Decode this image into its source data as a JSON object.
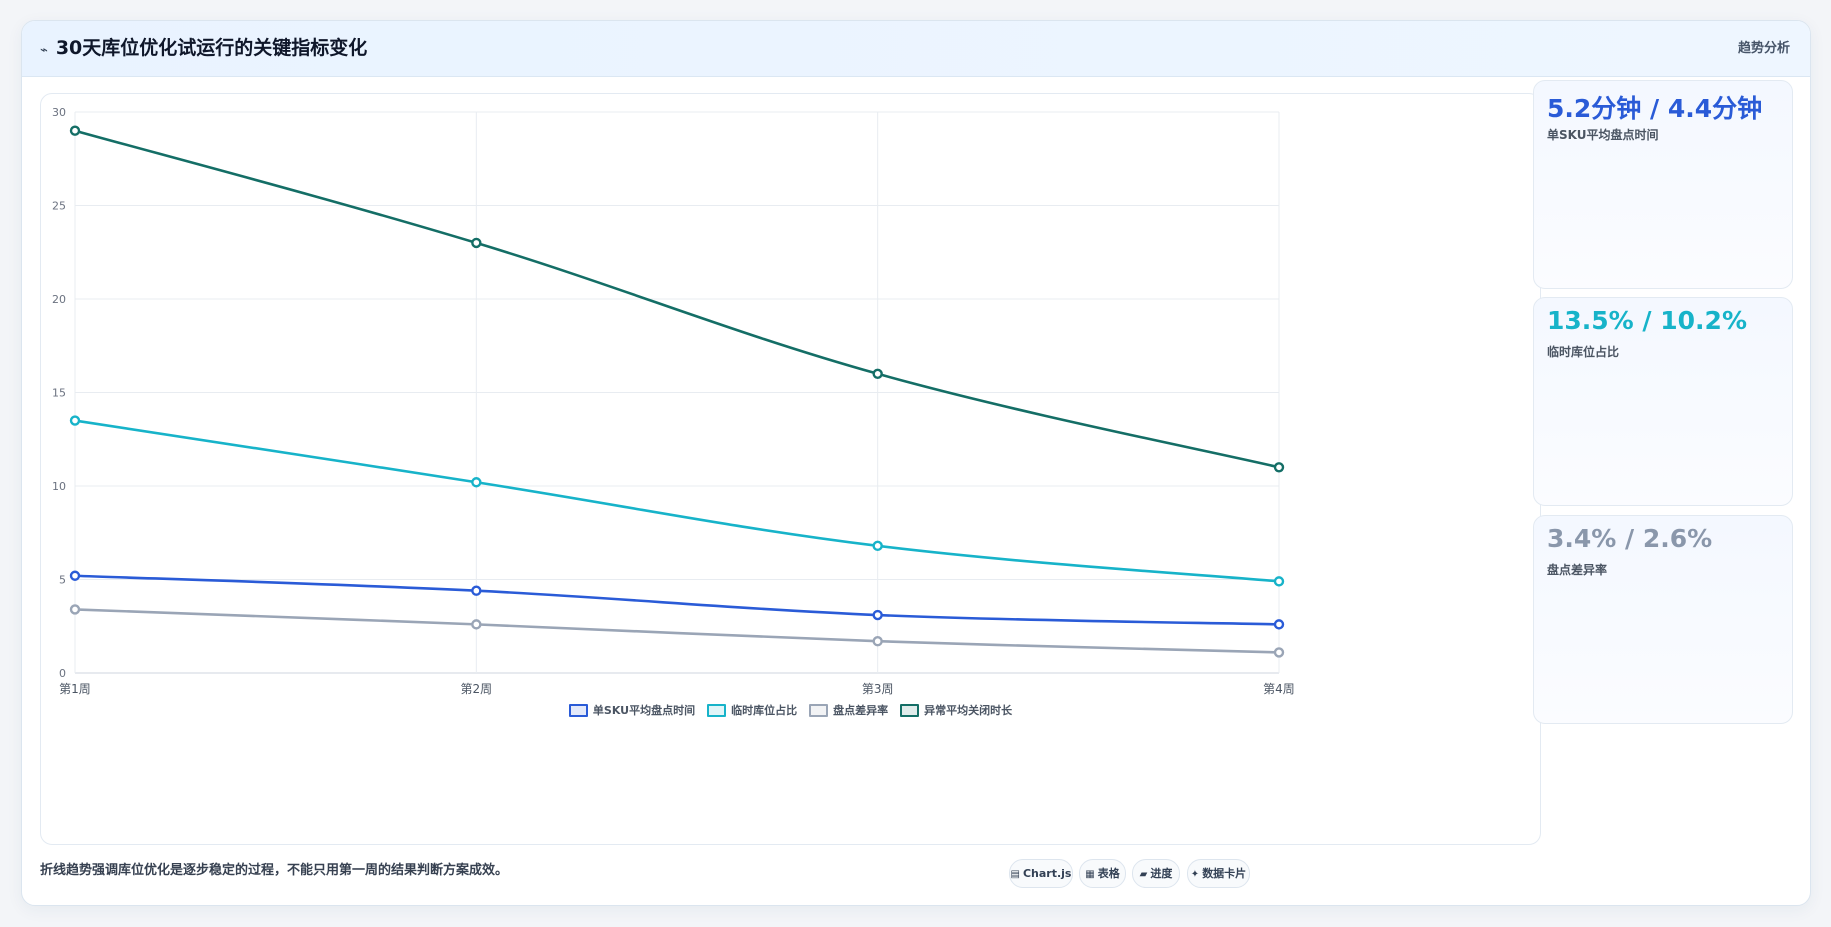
{
  "header": {
    "icon": "chart-line-icon",
    "title": "30天库位优化试运行的关键指标变化",
    "tag": "趋势分析"
  },
  "colors": {
    "blue": "#2a5bd7",
    "cyan": "#17b3c9",
    "gray": "#9aa5b6",
    "green": "#146e66"
  },
  "stats": [
    {
      "value": "5.2分钟 / 4.4分钟",
      "label": "单SKU平均盘点时间",
      "color": "#2a5bd7"
    },
    {
      "value": "13.5% / 10.2%",
      "label": "临时库位占比",
      "color": "#17b3c9"
    },
    {
      "value": "3.4% / 2.6%",
      "label": "盘点差异率",
      "color": "#8a97ab"
    }
  ],
  "footer": {
    "note": "折线趋势强调库位优化是逐步稳定的过程，不能只用第一周的结果判断方案成效。",
    "buttons": [
      {
        "icon": "chart-icon",
        "label": "Chart.js"
      },
      {
        "icon": "table-icon",
        "label": "表格"
      },
      {
        "icon": "progress-icon",
        "label": "进度"
      },
      {
        "icon": "card-icon",
        "label": "数据卡片"
      }
    ]
  },
  "chart_data": {
    "type": "line",
    "title": "",
    "xlabel": "",
    "ylabel": "",
    "categories": [
      "第1周",
      "第2周",
      "第3周",
      "第4周"
    ],
    "ylim": [
      0,
      30
    ],
    "yticks": [
      0,
      5,
      10,
      15,
      20,
      25,
      30
    ],
    "grid": true,
    "legend_position": "bottom",
    "series": [
      {
        "name": "单SKU平均盘点时间",
        "color": "#2a5bd7",
        "values": [
          5.2,
          4.4,
          3.1,
          2.6
        ]
      },
      {
        "name": "临时库位占比",
        "color": "#17b3c9",
        "values": [
          13.5,
          10.2,
          6.8,
          4.9
        ]
      },
      {
        "name": "盘点差异率",
        "color": "#9aa5b6",
        "values": [
          3.4,
          2.6,
          1.7,
          1.1
        ]
      },
      {
        "name": "异常平均关闭时长",
        "color": "#146e66",
        "values": [
          29,
          23,
          16,
          11
        ]
      }
    ]
  }
}
